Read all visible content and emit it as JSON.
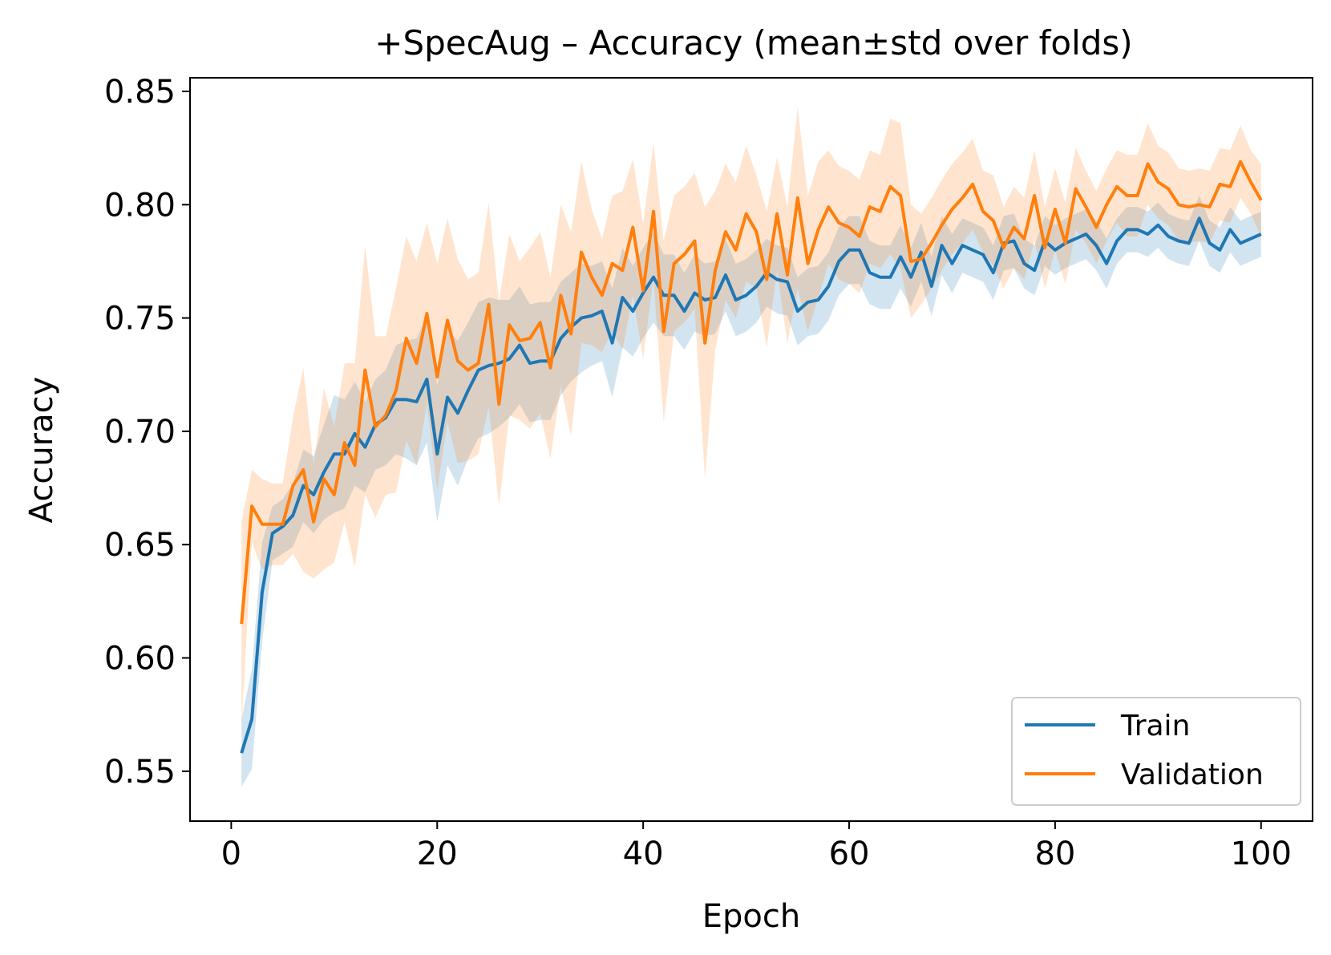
{
  "chart_data": {
    "type": "line",
    "title": "+SpecAug – Accuracy (mean±std over folds)",
    "xlabel": "Epoch",
    "ylabel": "Accuracy",
    "xlim": [
      -4,
      105
    ],
    "ylim": [
      0.528,
      0.856
    ],
    "xticks": [
      0,
      20,
      40,
      60,
      80,
      100
    ],
    "xtick_labels": [
      "0",
      "20",
      "40",
      "60",
      "80",
      "100"
    ],
    "yticks": [
      0.55,
      0.6,
      0.65,
      0.7,
      0.75,
      0.8,
      0.85
    ],
    "ytick_labels": [
      "0.55",
      "0.60",
      "0.65",
      "0.70",
      "0.75",
      "0.80",
      "0.85"
    ],
    "grid": false,
    "legend_position": "lower right",
    "x": [
      1,
      2,
      3,
      4,
      5,
      6,
      7,
      8,
      9,
      10,
      11,
      12,
      13,
      14,
      15,
      16,
      17,
      18,
      19,
      20,
      21,
      22,
      23,
      24,
      25,
      26,
      27,
      28,
      29,
      30,
      31,
      32,
      33,
      34,
      35,
      36,
      37,
      38,
      39,
      40,
      41,
      42,
      43,
      44,
      45,
      46,
      47,
      48,
      49,
      50,
      51,
      52,
      53,
      54,
      55,
      56,
      57,
      58,
      59,
      60,
      61,
      62,
      63,
      64,
      65,
      66,
      67,
      68,
      69,
      70,
      71,
      72,
      73,
      74,
      75,
      76,
      77,
      78,
      79,
      80,
      81,
      82,
      83,
      84,
      85,
      86,
      87,
      88,
      89,
      90,
      91,
      92,
      93,
      94,
      95,
      96,
      97,
      98,
      99,
      100
    ],
    "series": [
      {
        "name": "Train",
        "color": "#1f77b4",
        "mean": [
          0.558,
          0.573,
          0.629,
          0.655,
          0.658,
          0.663,
          0.676,
          0.672,
          0.682,
          0.69,
          0.69,
          0.699,
          0.693,
          0.703,
          0.706,
          0.714,
          0.714,
          0.713,
          0.723,
          0.69,
          0.715,
          0.708,
          0.718,
          0.727,
          0.729,
          0.73,
          0.732,
          0.738,
          0.73,
          0.731,
          0.731,
          0.741,
          0.746,
          0.75,
          0.751,
          0.753,
          0.739,
          0.759,
          0.753,
          0.761,
          0.768,
          0.76,
          0.76,
          0.753,
          0.761,
          0.758,
          0.759,
          0.769,
          0.758,
          0.76,
          0.764,
          0.77,
          0.767,
          0.766,
          0.753,
          0.757,
          0.758,
          0.764,
          0.775,
          0.78,
          0.78,
          0.77,
          0.768,
          0.768,
          0.777,
          0.768,
          0.779,
          0.764,
          0.782,
          0.774,
          0.782,
          0.78,
          0.778,
          0.77,
          0.783,
          0.784,
          0.774,
          0.771,
          0.784,
          0.78,
          0.783,
          0.785,
          0.787,
          0.782,
          0.774,
          0.784,
          0.789,
          0.789,
          0.787,
          0.791,
          0.786,
          0.784,
          0.783,
          0.794,
          0.783,
          0.78,
          0.789,
          0.783,
          0.785,
          0.787
        ],
        "std": [
          0.015,
          0.022,
          0.022,
          0.012,
          0.012,
          0.014,
          0.016,
          0.017,
          0.021,
          0.026,
          0.024,
          0.023,
          0.02,
          0.02,
          0.021,
          0.024,
          0.026,
          0.028,
          0.028,
          0.03,
          0.03,
          0.032,
          0.03,
          0.03,
          0.03,
          0.028,
          0.026,
          0.026,
          0.026,
          0.026,
          0.026,
          0.025,
          0.024,
          0.024,
          0.022,
          0.022,
          0.024,
          0.022,
          0.02,
          0.02,
          0.02,
          0.018,
          0.018,
          0.017,
          0.017,
          0.016,
          0.016,
          0.016,
          0.016,
          0.016,
          0.016,
          0.015,
          0.015,
          0.015,
          0.015,
          0.015,
          0.015,
          0.015,
          0.015,
          0.015,
          0.015,
          0.014,
          0.014,
          0.014,
          0.014,
          0.013,
          0.013,
          0.013,
          0.013,
          0.013,
          0.012,
          0.012,
          0.012,
          0.012,
          0.012,
          0.012,
          0.011,
          0.011,
          0.011,
          0.011,
          0.011,
          0.011,
          0.011,
          0.011,
          0.011,
          0.01,
          0.01,
          0.01,
          0.01,
          0.01,
          0.01,
          0.01,
          0.01,
          0.01,
          0.01,
          0.01,
          0.01,
          0.01,
          0.01,
          0.01
        ]
      },
      {
        "name": "Validation",
        "color": "#ff7f0e",
        "mean": [
          0.615,
          0.667,
          0.659,
          0.659,
          0.659,
          0.676,
          0.683,
          0.66,
          0.679,
          0.672,
          0.695,
          0.685,
          0.727,
          0.702,
          0.707,
          0.718,
          0.741,
          0.73,
          0.752,
          0.724,
          0.749,
          0.731,
          0.727,
          0.73,
          0.756,
          0.712,
          0.747,
          0.74,
          0.741,
          0.748,
          0.728,
          0.76,
          0.743,
          0.779,
          0.768,
          0.76,
          0.774,
          0.771,
          0.79,
          0.762,
          0.797,
          0.744,
          0.774,
          0.778,
          0.784,
          0.739,
          0.771,
          0.788,
          0.78,
          0.796,
          0.788,
          0.767,
          0.796,
          0.769,
          0.803,
          0.774,
          0.789,
          0.799,
          0.792,
          0.79,
          0.786,
          0.799,
          0.797,
          0.808,
          0.804,
          0.775,
          0.776,
          0.783,
          0.791,
          0.798,
          0.803,
          0.809,
          0.797,
          0.793,
          0.781,
          0.79,
          0.785,
          0.804,
          0.781,
          0.798,
          0.783,
          0.807,
          0.799,
          0.79,
          0.8,
          0.808,
          0.804,
          0.804,
          0.818,
          0.81,
          0.807,
          0.8,
          0.799,
          0.8,
          0.799,
          0.809,
          0.808,
          0.819,
          0.81,
          0.802
        ],
        "std": [
          0.045,
          0.016,
          0.02,
          0.018,
          0.018,
          0.03,
          0.045,
          0.025,
          0.04,
          0.03,
          0.035,
          0.045,
          0.055,
          0.04,
          0.035,
          0.045,
          0.045,
          0.045,
          0.04,
          0.05,
          0.045,
          0.045,
          0.04,
          0.04,
          0.045,
          0.045,
          0.04,
          0.035,
          0.04,
          0.04,
          0.04,
          0.04,
          0.045,
          0.04,
          0.03,
          0.025,
          0.03,
          0.035,
          0.03,
          0.03,
          0.03,
          0.04,
          0.03,
          0.03,
          0.03,
          0.06,
          0.035,
          0.03,
          0.03,
          0.03,
          0.025,
          0.03,
          0.025,
          0.03,
          0.04,
          0.03,
          0.03,
          0.025,
          0.025,
          0.025,
          0.025,
          0.025,
          0.025,
          0.03,
          0.032,
          0.025,
          0.02,
          0.02,
          0.02,
          0.02,
          0.02,
          0.02,
          0.018,
          0.02,
          0.018,
          0.018,
          0.018,
          0.02,
          0.018,
          0.018,
          0.018,
          0.018,
          0.016,
          0.016,
          0.016,
          0.016,
          0.018,
          0.018,
          0.018,
          0.016,
          0.016,
          0.016,
          0.016,
          0.016,
          0.016,
          0.016,
          0.016,
          0.016,
          0.014,
          0.016
        ]
      }
    ]
  }
}
